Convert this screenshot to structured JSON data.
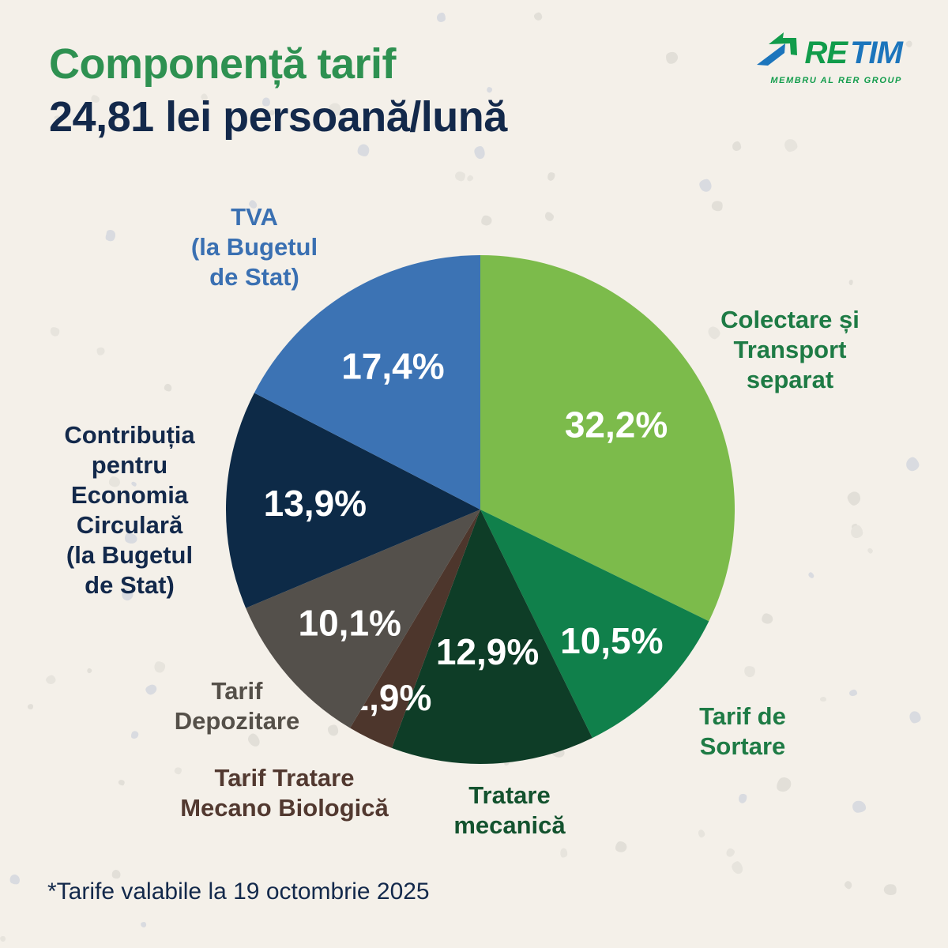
{
  "header": {
    "title": "Componență tarif",
    "subtitle": "24,81 lei persoană/lună"
  },
  "logo": {
    "brand_re": "RE",
    "brand_tim": "TIM",
    "tagline": "MEMBRU AL RER GROUP",
    "icon": "recycling-arrows-icon"
  },
  "footnote": "*Tarife valabile la 19 octombrie 2025",
  "colors": {
    "background": "#F4F0E9",
    "title_green": "#2E9151",
    "navy_text": "#13294B",
    "percent_text": "#FFFFFF",
    "logo_green": "#119C4B",
    "logo_blue": "#1C75BC",
    "speck_warm": "#E2DFD8",
    "speck_cool": "#D9DBE0"
  },
  "chart_data": {
    "type": "pie",
    "title": "Componență tarif",
    "subtitle": "24,81 lei persoană/lună",
    "value_unit": "percent",
    "start_angle_deg": 0,
    "direction": "clockwise",
    "total": 100,
    "legend_position": "around-pie",
    "slices": [
      {
        "label": "Colectare și Transport separat",
        "lines": [
          "Colectare și",
          "Transport",
          "separat"
        ],
        "value": 32.2,
        "display": "32,2%",
        "color": "#7CBB4B",
        "text_color": "#1E7B45",
        "label_radius_frac": 0.63
      },
      {
        "label": "Tarif de Sortare",
        "lines": [
          "Tarif de",
          "Sortare"
        ],
        "value": 10.5,
        "display": "10,5%",
        "color": "#10804B",
        "text_color": "#1E7B45",
        "label_radius_frac": 0.73
      },
      {
        "label": "Tratare mecanică",
        "lines": [
          "Tratare",
          "mecanică"
        ],
        "value": 12.9,
        "display": "12,9%",
        "color": "#0E3D27",
        "text_color": "#14532F",
        "label_radius_frac": 0.56
      },
      {
        "label": "Tarif Tratare Mecano Biologică",
        "lines": [
          "Tarif Tratare",
          "Mecano Biologică"
        ],
        "value": 2.9,
        "display": "2,9%",
        "color": "#4D362C",
        "text_color": "#523930",
        "label_radius_frac": 0.82
      },
      {
        "label": "Tarif Depozitare",
        "lines": [
          "Tarif",
          "Depozitare"
        ],
        "value": 10.1,
        "display": "10,1%",
        "color": "#54504B",
        "text_color": "#555049",
        "label_radius_frac": 0.68
      },
      {
        "label": "Contribuția pentru Economia Circulară (la Bugetul de Stat)",
        "lines": [
          "Contribuția",
          "pentru",
          "Economia",
          "Circulară",
          "(la Bugetul",
          "de Stat)"
        ],
        "value": 13.9,
        "display": "13,9%",
        "color": "#0D2A47",
        "text_color": "#13294B",
        "label_radius_frac": 0.65
      },
      {
        "label": "TVA (la Bugetul de Stat)",
        "lines": [
          "TVA",
          "(la Bugetul",
          "de Stat)"
        ],
        "value": 17.4,
        "display": "17,4%",
        "color": "#3C73B4",
        "text_color": "#3A70B2",
        "label_radius_frac": 0.66
      }
    ]
  }
}
